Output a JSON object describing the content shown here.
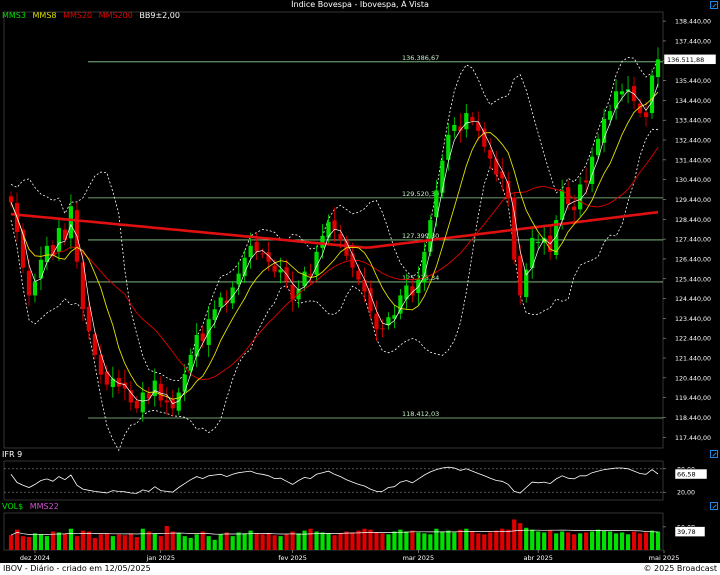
{
  "window": {
    "title": "Índice Bovespa - Ibovespa, À Vista"
  },
  "legend": [
    {
      "label": "MMS3",
      "color": "#00e000"
    },
    {
      "label": "MMS8",
      "color": "#e0e000"
    },
    {
      "label": "MMS20",
      "color": "#e00000"
    },
    {
      "label": "MMS200",
      "color": "#e00000"
    },
    {
      "label": "BB9±2,00",
      "color": "#ffffff"
    }
  ],
  "footer": {
    "left": "IBOV - Diário - criado em 12/05/2025",
    "right": "© 2025 Broadcast"
  },
  "colors": {
    "up": "#00e000",
    "down": "#e00000",
    "sma3": "#00e000",
    "sma8": "#e0e000",
    "sma20": "#e00000",
    "sma200": "#e01010",
    "bands": "#ffffff",
    "levels": "#90d090"
  },
  "chart_data": [
    {
      "type": "candlestick",
      "title": "Índice Bovespa - Ibovespa, À Vista",
      "y_ticks": [
        "138.440,00",
        "137.440,00",
        "136.440,00",
        "135.440,00",
        "134.440,00",
        "133.440,00",
        "132.440,00",
        "131.440,00",
        "130.440,00",
        "129.440,00",
        "128.440,00",
        "127.440,00",
        "126.440,00",
        "125.440,00",
        "124.440,00",
        "123.440,00",
        "122.440,00",
        "121.440,00",
        "120.440,00",
        "119.440,00",
        "118.440,00",
        "117.440,00"
      ],
      "ylim": [
        116900,
        138900
      ],
      "last_price_label": "136.511,88",
      "last_price": 136511.88,
      "horizontal_levels": [
        {
          "label": "136.386,67",
          "value": 136386.67
        },
        {
          "label": "129.520,30",
          "value": 129520.3
        },
        {
          "label": "127.399,30",
          "value": 127399.3
        },
        {
          "label": "125.278,34",
          "value": 125278.34
        },
        {
          "label": "118.412,03",
          "value": 118412.03
        }
      ],
      "x_labels": [
        {
          "label": "dez 2024",
          "index": 4
        },
        {
          "label": "jan 2025",
          "index": 25
        },
        {
          "label": "fev 2025",
          "index": 47
        },
        {
          "label": "mar 2025",
          "index": 68
        },
        {
          "label": "abr 2025",
          "index": 88
        },
        {
          "label": "mai 2025",
          "index": 109
        }
      ],
      "closes": [
        129300,
        127800,
        126000,
        124600,
        125300,
        126400,
        127100,
        126600,
        128000,
        127400,
        129100,
        126300,
        123900,
        122800,
        121600,
        120600,
        120100,
        120400,
        120000,
        119900,
        119200,
        118900,
        119700,
        119400,
        120300,
        119300,
        119200,
        118900,
        119700,
        120600,
        121600,
        122600,
        122300,
        123400,
        123900,
        124500,
        124200,
        125000,
        125700,
        126500,
        127100,
        126800,
        126700,
        126300,
        125800,
        125900,
        125300,
        124400,
        124900,
        125800,
        125600,
        126800,
        127600,
        128300,
        127900,
        127400,
        126600,
        126000,
        125400,
        124800,
        123800,
        122900,
        122900,
        123500,
        123600,
        124600,
        125100,
        124600,
        125400,
        126800,
        128400,
        129900,
        131400,
        132700,
        133200,
        132900,
        133800,
        133400,
        132900,
        132100,
        131500,
        130700,
        130500,
        129500,
        126400,
        124600,
        125900,
        127500,
        127300,
        127500,
        126800,
        128400,
        129900,
        129200,
        128900,
        130200,
        130300,
        131600,
        132500,
        133500,
        133900,
        134900,
        134900,
        135000,
        134400,
        133800,
        133600,
        135700,
        136511.88
      ],
      "sma200_start": 128700,
      "sma200_mid": 127000,
      "sma200_end": 128800,
      "band_deviation": 2.0
    },
    {
      "type": "line",
      "title": "IFR 9",
      "y_ticks": [
        "80,00",
        "20,00"
      ],
      "ylim": [
        0,
        100
      ],
      "last_value_label": "66,58",
      "last_value": 66.58,
      "values": [
        66,
        45,
        38,
        32,
        40,
        50,
        54,
        48,
        60,
        52,
        64,
        38,
        28,
        25,
        22,
        20,
        18,
        24,
        22,
        21,
        18,
        17,
        26,
        22,
        34,
        24,
        22,
        20,
        32,
        42,
        52,
        60,
        55,
        62,
        64,
        66,
        60,
        66,
        70,
        72,
        74,
        68,
        66,
        62,
        55,
        56,
        48,
        40,
        50,
        58,
        55,
        66,
        70,
        74,
        66,
        60,
        52,
        46,
        40,
        36,
        28,
        22,
        22,
        32,
        34,
        46,
        50,
        44,
        54,
        64,
        72,
        78,
        82,
        84,
        82,
        76,
        80,
        74,
        68,
        62,
        56,
        50,
        48,
        40,
        22,
        18,
        32,
        46,
        44,
        46,
        42,
        54,
        62,
        56,
        54,
        62,
        62,
        70,
        74,
        78,
        80,
        82,
        82,
        80,
        74,
        68,
        66,
        78,
        66.58
      ]
    },
    {
      "type": "bar",
      "title": "VOL$",
      "series_names": [
        "VOL$",
        "MMS22"
      ],
      "y_ticks": [
        "50,0B"
      ],
      "ylim": [
        0,
        80
      ],
      "last_value_label": "39,78",
      "last_value": 39.78,
      "values": [
        32,
        44,
        30,
        28,
        36,
        34,
        30,
        40,
        38,
        36,
        46,
        30,
        42,
        40,
        26,
        34,
        36,
        30,
        34,
        32,
        36,
        28,
        46,
        40,
        36,
        30,
        52,
        40,
        36,
        30,
        26,
        34,
        40,
        30,
        22,
        34,
        38,
        30,
        38,
        36,
        42,
        36,
        34,
        36,
        32,
        30,
        34,
        40,
        36,
        42,
        46,
        40,
        38,
        36,
        32,
        36,
        40,
        38,
        42,
        46,
        44,
        38,
        36,
        34,
        40,
        44,
        40,
        42,
        38,
        36,
        34,
        46,
        40,
        42,
        38,
        44,
        46,
        40,
        36,
        34,
        38,
        42,
        46,
        44,
        66,
        58,
        48,
        44,
        40,
        38,
        42,
        36,
        40,
        38,
        34,
        36,
        38,
        40,
        44,
        42,
        40,
        36,
        38,
        34,
        40,
        36,
        38,
        42,
        39.78
      ]
    }
  ]
}
